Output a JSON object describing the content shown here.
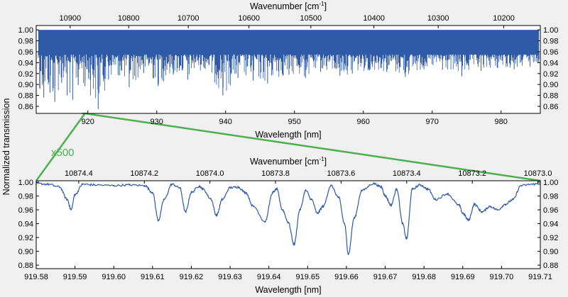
{
  "chart_data": [
    {
      "type": "line",
      "panel": "overview",
      "xlabel": "Wavelength [nm]",
      "x2label": "Wavenumber [cm",
      "x2label_sup": "-1",
      "x2label_end": "]",
      "xlim": [
        912.5,
        985.7
      ],
      "ylim": [
        0.847,
        1.008
      ],
      "x_ticks": [
        920,
        930,
        940,
        950,
        960,
        970,
        980
      ],
      "x_tick_labels": [
        "920",
        "930",
        "940",
        "950",
        "960",
        "970",
        "980"
      ],
      "x2_ticks": [
        10900,
        10800,
        10700,
        10600,
        10500,
        10400,
        10300,
        10200
      ],
      "x2_tick_labels": [
        "10900",
        "10800",
        "10700",
        "10600",
        "10500",
        "10400",
        "10300",
        "10200"
      ],
      "y_ticks": [
        0.86,
        0.88,
        0.9,
        0.92,
        0.94,
        0.96,
        0.98,
        1.0
      ],
      "y_tick_labels": [
        "0.86",
        "0.88",
        "0.90",
        "0.92",
        "0.94",
        "0.96",
        "0.98",
        "1.00"
      ],
      "color": "#2e5aa8",
      "band": {
        "x": [
          912.8,
          985.5
        ],
        "upper": 1.0,
        "lower": 0.955
      },
      "series": [
        {
          "x": [
            913.0,
            913.6,
            914.5,
            915.2,
            916.2,
            917.0,
            917.8,
            918.6,
            919.58,
            921.5,
            923.0,
            924.4,
            926.0,
            928.1,
            930.2,
            932.4,
            934.5,
            936.9,
            939.6,
            941.8,
            944.0,
            946.1,
            949.2,
            951.6,
            953.8,
            956.6,
            958.4,
            960.9,
            963.4,
            966.1,
            968.8,
            971.5,
            974.3,
            977.1,
            979.5,
            981.9,
            984.2,
            985.3
          ],
          "y": [
            0.893,
            0.876,
            0.885,
            0.868,
            0.903,
            0.88,
            0.872,
            0.899,
            0.897,
            0.855,
            0.909,
            0.917,
            0.895,
            0.921,
            0.897,
            0.918,
            0.909,
            0.93,
            0.88,
            0.912,
            0.907,
            0.902,
            0.918,
            0.912,
            0.923,
            0.916,
            0.92,
            0.926,
            0.923,
            0.914,
            0.928,
            0.927,
            0.915,
            0.925,
            0.93,
            0.928,
            0.933,
            0.94
          ]
        }
      ]
    },
    {
      "type": "line",
      "panel": "zoom",
      "xlabel": "Wavelength [nm]",
      "x2label": "Wavenumber [cm",
      "x2label_sup": "-1",
      "x2label_end": "]",
      "xlim": [
        919.58,
        919.71
      ],
      "ylim": [
        0.875,
        1.002
      ],
      "x_ticks": [
        919.58,
        919.59,
        919.6,
        919.61,
        919.62,
        919.63,
        919.64,
        919.65,
        919.66,
        919.67,
        919.68,
        919.69,
        919.7,
        919.71
      ],
      "x_tick_labels": [
        "919.58",
        "919.59",
        "919.60",
        "919.61",
        "919.62",
        "919.63",
        "919.64",
        "919.65",
        "919.66",
        "919.67",
        "919.68",
        "919.69",
        "919.70",
        "919.71"
      ],
      "x2_ticks": [
        10874.4,
        10874.2,
        10874.0,
        10873.8,
        10873.6,
        10873.4,
        10873.2,
        10873.0
      ],
      "x2_tick_labels": [
        "10874.4",
        "10874.2",
        "10874.0",
        "10873.8",
        "10873.6",
        "10873.4",
        "10873.2",
        "10873.0"
      ],
      "y_ticks": [
        0.88,
        0.9,
        0.92,
        0.94,
        0.96,
        0.98,
        1.0
      ],
      "y_tick_labels": [
        "0.88",
        "0.90",
        "0.92",
        "0.94",
        "0.96",
        "0.98",
        "1.00"
      ],
      "color": "#2e5aa8",
      "series": [
        {
          "x": [
            919.58,
            919.583,
            919.586,
            919.588,
            919.589,
            919.59,
            919.592,
            919.595,
            919.6,
            919.604,
            919.608,
            919.61,
            919.6115,
            919.613,
            919.615,
            919.617,
            919.6185,
            919.62,
            919.622,
            919.623,
            919.625,
            919.6265,
            919.628,
            919.63,
            919.632,
            919.634,
            919.636,
            919.639,
            919.641,
            919.642,
            919.6435,
            919.645,
            919.6465,
            919.648,
            919.6495,
            919.651,
            919.6525,
            919.654,
            919.656,
            919.658,
            919.6595,
            919.6605,
            919.662,
            919.664,
            919.667,
            919.669,
            919.67,
            919.6715,
            919.673,
            919.6745,
            919.6755,
            919.677,
            919.679,
            919.681,
            919.683,
            919.686,
            919.689,
            919.69,
            919.6915,
            919.693,
            919.695,
            919.697,
            919.699,
            919.701,
            919.703,
            919.705,
            919.708,
            919.71
          ],
          "y": [
            0.998,
            0.997,
            0.993,
            0.975,
            0.96,
            0.982,
            0.997,
            0.996,
            0.995,
            0.996,
            0.995,
            0.985,
            0.945,
            0.975,
            0.997,
            0.992,
            0.957,
            0.985,
            0.994,
            0.99,
            0.976,
            0.952,
            0.975,
            0.992,
            0.993,
            0.985,
            0.965,
            0.943,
            0.985,
            0.99,
            0.96,
            0.942,
            0.91,
            0.96,
            0.988,
            0.975,
            0.955,
            0.965,
            0.995,
            0.978,
            0.94,
            0.896,
            0.948,
            0.988,
            0.998,
            0.993,
            0.98,
            0.967,
            0.99,
            0.94,
            0.918,
            0.99,
            0.996,
            0.99,
            0.975,
            0.983,
            0.967,
            0.955,
            0.945,
            0.968,
            0.957,
            0.965,
            0.96,
            0.968,
            0.975,
            0.995,
            0.997,
            0.998
          ]
        }
      ]
    }
  ],
  "shared_ylabel": "Normalized transmission",
  "zoom_annotation": "x500",
  "zoom_color": "#4caf50"
}
